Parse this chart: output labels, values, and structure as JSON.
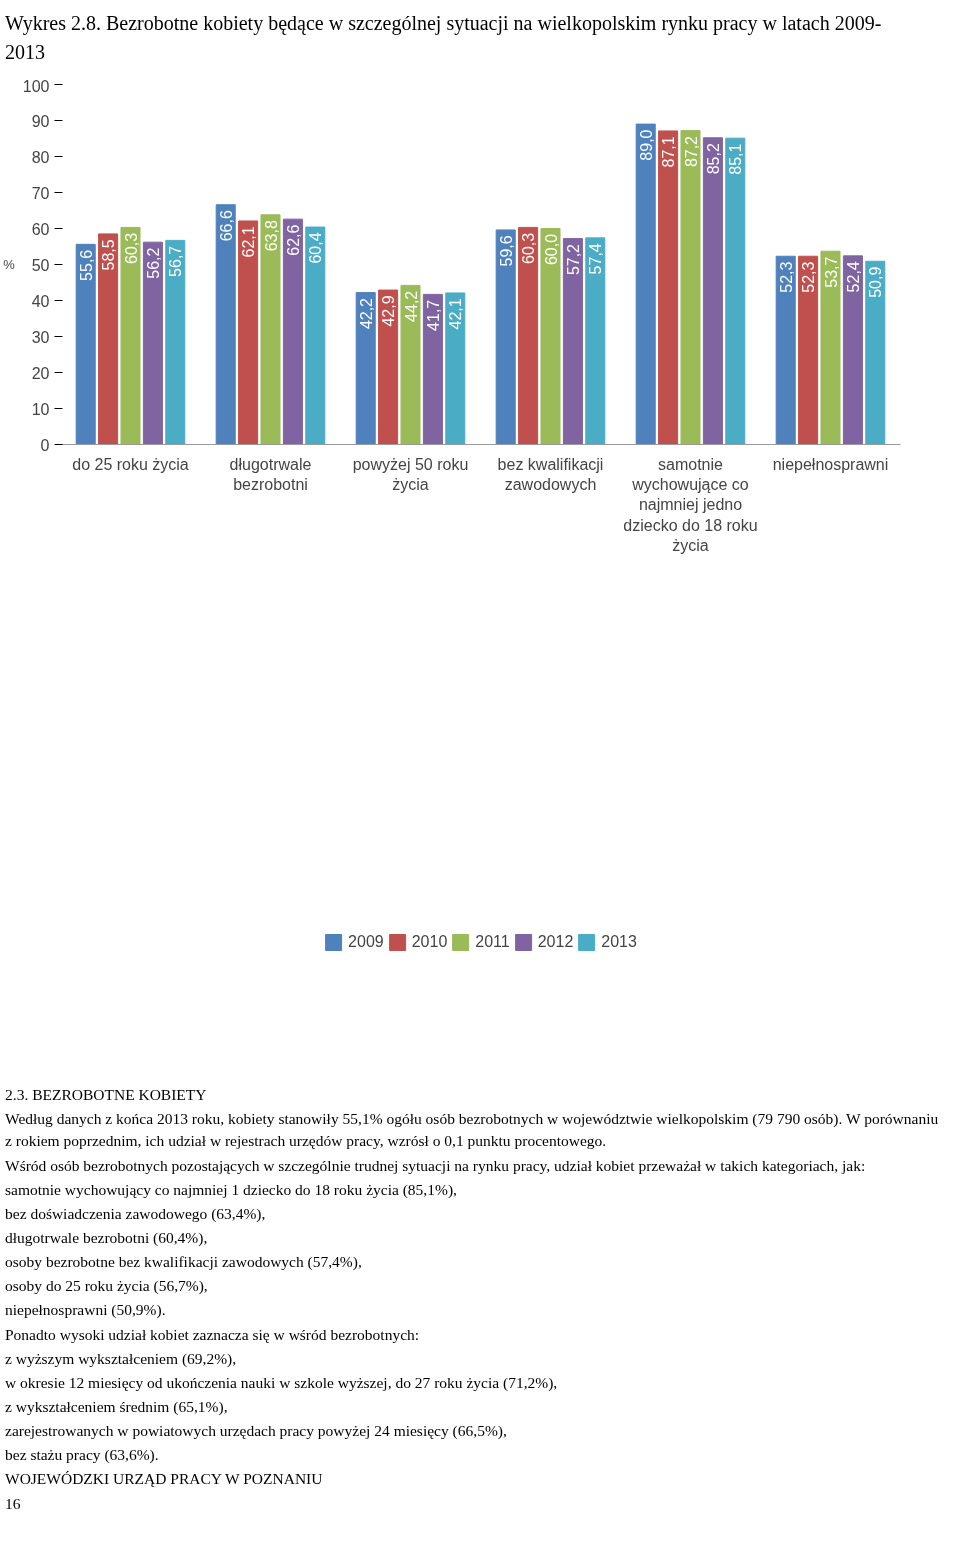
{
  "chart_data": {
    "type": "bar",
    "title": "Wykres 2.8. Bezrobotne kobiety będące w szczególnej sytuacji na wielkopolskim rynku pracy w latach 2009-2013",
    "ylabel": "%",
    "categories": [
      "do 25 roku życia",
      "długotrwale bezrobotni",
      "powyżej 50 roku życia",
      "bez kwalifikacji zawodowych",
      "samotnie wychowujące co najmniej jedno dziecko do 18 roku życia",
      "niepełnosprawni"
    ],
    "series": [
      {
        "name": "2009",
        "color": "#4f81bd",
        "values": [
          55.6,
          66.6,
          42.2,
          59.6,
          89.0,
          52.3
        ]
      },
      {
        "name": "2010",
        "color": "#c0504d",
        "values": [
          58.5,
          62.1,
          42.9,
          60.3,
          87.1,
          52.3
        ]
      },
      {
        "name": "2011",
        "color": "#9bbb59",
        "values": [
          60.3,
          63.8,
          44.2,
          60.0,
          87.2,
          53.7
        ]
      },
      {
        "name": "2012",
        "color": "#8064a2",
        "values": [
          56.2,
          62.6,
          41.7,
          57.2,
          85.2,
          52.4
        ]
      },
      {
        "name": "2013",
        "color": "#4bacc6",
        "values": [
          56.7,
          60.4,
          42.1,
          57.4,
          85.1,
          50.9
        ]
      }
    ],
    "value_labels": [
      [
        "55,6",
        "66,6",
        "42,2",
        "59,6",
        "89,0",
        "52,3"
      ],
      [
        "58,5",
        "62,1",
        "42,9",
        "60,3",
        "87,1",
        "52,3"
      ],
      [
        "60,3",
        "63,8",
        "44,2",
        "60,0",
        "87,2",
        "53,7"
      ],
      [
        "56,2",
        "62,6",
        "41,7",
        "57,2",
        "85,2",
        "52,4"
      ],
      [
        "56,7",
        "60,4",
        "42,1",
        "57,4",
        "85,1",
        "50,9"
      ]
    ],
    "ylim": [
      0,
      100
    ],
    "yticks": [
      0,
      10,
      20,
      30,
      40,
      50,
      60,
      70,
      80,
      90,
      100
    ],
    "grid": false,
    "legend": "bottom",
    "annotations": [
      "2.3. BEZROBOTNE KOBIETY",
      "Według danych z końca 2013 roku, kobiety stanowiły 55,1% ogółu osób bezrobotnych w województwie wielkopolskim (79 790 osób). W porównaniu z rokiem poprzednim, ich udział w rejestrach urzędów pracy, wzrósł o 0,1 punktu procentowego.",
      "Wśród osób bezrobotnych pozostających w szczególnie trudnej sytuacji na rynku pracy, udział kobiet przeważał w takich kategoriach, jak:",
      "samotnie wychowujący co najmniej 1 dziecko do 18 roku życia (85,1%),",
      "bez doświadczenia zawodowego (63,4%),",
      "długotrwale bezrobotni (60,4%),",
      "osoby bezrobotne bez kwalifikacji zawodowych (57,4%),",
      "osoby do 25 roku życia (56,7%),",
      "niepełnosprawni (50,9%).",
      "Ponadto wysoki udział kobiet zaznacza się w wśród bezrobotnych:",
      "z wyższym wykształceniem (69,2%),",
      "w okresie 12 miesięcy od ukończenia nauki w szkole wyższej, do 27 roku życia (71,2%),",
      "z wykształceniem średnim (65,1%),",
      "zarejestrowanych w powiatowych urzędach pracy powyżej 24 miesięcy (66,5%),",
      "bez stażu pracy (63,6%).",
      "WOJEWÓDZKI URZĄD PRACY W POZNANIU",
      "16"
    ]
  }
}
